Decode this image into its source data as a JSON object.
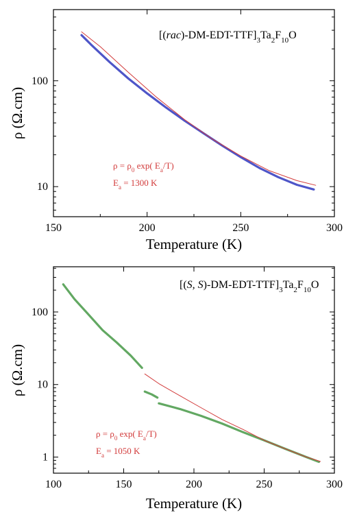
{
  "chart_data": [
    {
      "type": "line",
      "title_parts": {
        "open": "[(",
        "italic": "rac",
        "mid": ")-DM-EDT-TTF]",
        "sub1": "3",
        "ta": "Ta",
        "sub2": "2",
        "f": "F",
        "sub3": "10",
        "end": "O"
      },
      "xlabel": "Temperature (K)",
      "ylabel": "ρ (Ω.cm)",
      "xlim": [
        150,
        300
      ],
      "ylim": [
        5.2,
        470
      ],
      "yscale": "log",
      "xticks": [
        150,
        200,
        250,
        300
      ],
      "yticks": [
        10,
        100
      ],
      "annotation": {
        "formula": {
          "rho": "ρ = ρ",
          "sub0": "0",
          "rest": " exp( E",
          "suba": "a",
          "tail": "/T)"
        },
        "ea": {
          "e": "E",
          "sub": "a",
          "val": " =  1300 K"
        },
        "color": "#d23a3a"
      },
      "series": [
        {
          "color": "#4e55c8",
          "x": [
            165,
            170,
            180,
            190,
            200,
            210,
            220,
            230,
            240,
            250,
            260,
            270,
            280,
            289
          ],
          "y": [
            270,
            220,
            150,
            105,
            76,
            56,
            42,
            32,
            24.5,
            19,
            15,
            12.3,
            10.4,
            9.4
          ]
        },
        {
          "color": "#d23a3a",
          "x": [
            165,
            175,
            190,
            205,
            220,
            235,
            250,
            265,
            280,
            290
          ],
          "y": [
            290,
            210,
            120,
            70,
            43,
            28,
            19.5,
            14.2,
            11.4,
            10.3
          ]
        }
      ]
    },
    {
      "type": "line",
      "title_parts": {
        "open": "[(",
        "italic": "S, S",
        "mid": ")-DM-EDT-TTF]",
        "sub1": "3",
        "ta": "Ta",
        "sub2": "2",
        "f": "F",
        "sub3": "10",
        "end": "O"
      },
      "xlabel": "Temperature (K)",
      "ylabel": "ρ (Ω.cm)",
      "xlim": [
        100,
        300
      ],
      "ylim": [
        0.6,
        420
      ],
      "yscale": "log",
      "xticks": [
        100,
        150,
        200,
        250,
        300
      ],
      "yticks": [
        1,
        10,
        100
      ],
      "annotation": {
        "formula": {
          "rho": "ρ = ρ",
          "sub0": "0",
          "rest": " exp( E",
          "suba": "a",
          "tail": "/T)"
        },
        "ea": {
          "e": "E",
          "sub": "a",
          "val": " =  1050 K"
        },
        "color": "#d23a3a"
      },
      "series": [
        {
          "color": "#62a862",
          "x": [
            107,
            115,
            125,
            135,
            145,
            155,
            163
          ],
          "y": [
            240,
            150,
            92,
            56,
            38,
            25,
            17
          ]
        },
        {
          "color": "#62a862",
          "x": [
            165,
            170,
            174
          ],
          "y": [
            8.0,
            7.3,
            6.6
          ]
        },
        {
          "color": "#62a862",
          "x": [
            175,
            190,
            205,
            220,
            235,
            250,
            265,
            280,
            289
          ],
          "y": [
            5.5,
            4.6,
            3.7,
            2.9,
            2.2,
            1.7,
            1.3,
            1.0,
            0.86
          ]
        },
        {
          "color": "#d23a3a",
          "x": [
            165,
            175,
            190,
            205,
            220,
            235,
            250,
            265,
            280,
            290
          ],
          "y": [
            14,
            10.3,
            7.0,
            4.8,
            3.3,
            2.4,
            1.7,
            1.3,
            1.0,
            0.87
          ]
        }
      ]
    }
  ]
}
